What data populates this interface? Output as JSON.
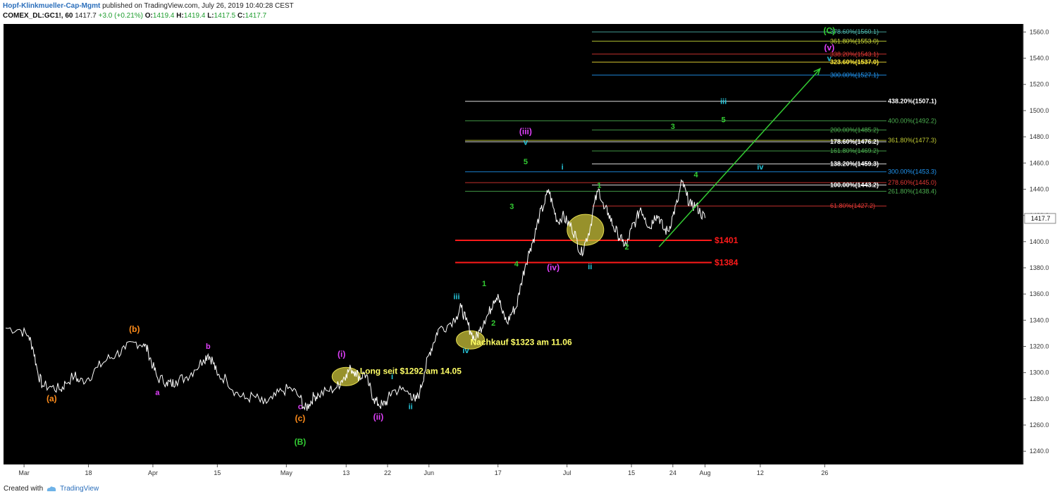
{
  "header": {
    "publisher": "Hopf-Klinkmueller-Cap-Mgmt",
    "published_text": "published on TradingView.com, July 26, 2019 10:40:28 CEST",
    "symbol": "COMEX_DL:GC1!, 60",
    "last": "1417.7",
    "change": "+3.0 (+0.21%)",
    "o_label": "O:",
    "o": "1419.4",
    "h_label": "H:",
    "h": "1419.4",
    "l_label": "L:",
    "l": "1417.5",
    "c_label": "C:",
    "c": "1417.7"
  },
  "footer": {
    "created_with": "Created with",
    "brand": "TradingView"
  },
  "chart_data": {
    "type": "line",
    "ylim": [
      1230,
      1570
    ],
    "y_ticks": [
      1240,
      1260,
      1280,
      1300,
      1320,
      1340,
      1360,
      1380,
      1400,
      1420,
      1440,
      1460,
      1480,
      1500,
      1520,
      1540,
      1560
    ],
    "x_range": [
      0,
      152
    ],
    "x_ticks": [
      {
        "day": 4,
        "label": "Mar"
      },
      {
        "day": 18,
        "label": "18"
      },
      {
        "day": 32,
        "label": "Apr"
      },
      {
        "day": 46,
        "label": "15"
      },
      {
        "day": 61,
        "label": "May"
      },
      {
        "day": 74,
        "label": "13"
      },
      {
        "day": 83,
        "label": "22"
      },
      {
        "day": 92,
        "label": "Jun"
      },
      {
        "day": 107,
        "label": "17"
      },
      {
        "day": 122,
        "label": "Jul"
      },
      {
        "day": 136,
        "label": "15"
      },
      {
        "day": 145,
        "label": "24"
      },
      {
        "day": 152,
        "label": "Aug"
      },
      {
        "day": 164,
        "label": "12"
      },
      {
        "day": 178,
        "label": "26"
      }
    ],
    "current_price": 1417.7,
    "series": [
      {
        "points": [
          [
            0,
            1334
          ],
          [
            3,
            1333
          ],
          [
            5,
            1328
          ],
          [
            6,
            1318
          ],
          [
            7,
            1300
          ],
          [
            8,
            1290
          ],
          [
            10,
            1289
          ],
          [
            12,
            1287
          ],
          [
            13,
            1292
          ],
          [
            15,
            1298
          ],
          [
            16,
            1293
          ],
          [
            18,
            1296
          ],
          [
            20,
            1304
          ],
          [
            22,
            1310
          ],
          [
            24,
            1314
          ],
          [
            26,
            1318
          ],
          [
            28,
            1323
          ],
          [
            30,
            1322
          ],
          [
            31,
            1316
          ],
          [
            32,
            1305
          ],
          [
            33,
            1296
          ],
          [
            35,
            1293
          ],
          [
            36,
            1291
          ],
          [
            37,
            1294
          ],
          [
            39,
            1296
          ],
          [
            41,
            1302
          ],
          [
            43,
            1310
          ],
          [
            44,
            1314
          ],
          [
            45,
            1309
          ],
          [
            46,
            1298
          ],
          [
            48,
            1295
          ],
          [
            50,
            1285
          ],
          [
            52,
            1280
          ],
          [
            54,
            1282
          ],
          [
            56,
            1276
          ],
          [
            58,
            1280
          ],
          [
            60,
            1286
          ],
          [
            62,
            1288
          ],
          [
            64,
            1281
          ],
          [
            65,
            1272
          ],
          [
            66,
            1276
          ],
          [
            67,
            1282
          ],
          [
            68,
            1283
          ],
          [
            70,
            1286
          ],
          [
            72,
            1289
          ],
          [
            73,
            1294
          ],
          [
            74,
            1299
          ],
          [
            75,
            1303
          ],
          [
            76,
            1301
          ],
          [
            77,
            1296
          ],
          [
            78,
            1300
          ],
          [
            79,
            1290
          ],
          [
            80,
            1280
          ],
          [
            81,
            1276
          ],
          [
            82,
            1275
          ],
          [
            83,
            1279
          ],
          [
            84,
            1286
          ],
          [
            86,
            1287
          ],
          [
            88,
            1284
          ],
          [
            89,
            1278
          ],
          [
            90,
            1285
          ],
          [
            91,
            1300
          ],
          [
            92,
            1314
          ],
          [
            93,
            1323
          ],
          [
            94,
            1333
          ],
          [
            96,
            1336
          ],
          [
            98,
            1343
          ],
          [
            99,
            1350
          ],
          [
            100,
            1340
          ],
          [
            101,
            1332
          ],
          [
            102,
            1325
          ],
          [
            103,
            1332
          ],
          [
            104,
            1340
          ],
          [
            105,
            1345
          ],
          [
            106,
            1355
          ],
          [
            107,
            1360
          ],
          [
            108,
            1345
          ],
          [
            109,
            1338
          ],
          [
            110,
            1346
          ],
          [
            111,
            1350
          ],
          [
            112,
            1368
          ],
          [
            113,
            1383
          ],
          [
            114,
            1395
          ],
          [
            115,
            1405
          ],
          [
            116,
            1420
          ],
          [
            117,
            1428
          ],
          [
            118,
            1440
          ],
          [
            119,
            1426
          ],
          [
            120,
            1415
          ],
          [
            121,
            1420
          ],
          [
            122,
            1415
          ],
          [
            123,
            1411
          ],
          [
            124,
            1403
          ],
          [
            125,
            1390
          ],
          [
            126,
            1400
          ],
          [
            127,
            1410
          ],
          [
            128,
            1430
          ],
          [
            129,
            1440
          ],
          [
            130,
            1425
          ],
          [
            131,
            1422
          ],
          [
            132,
            1412
          ],
          [
            133,
            1406
          ],
          [
            134,
            1400
          ],
          [
            135,
            1397
          ],
          [
            136,
            1410
          ],
          [
            137,
            1416
          ],
          [
            138,
            1426
          ],
          [
            139,
            1418
          ],
          [
            140,
            1410
          ],
          [
            141,
            1420
          ],
          [
            142,
            1419
          ],
          [
            143,
            1409
          ],
          [
            144,
            1408
          ],
          [
            145,
            1420
          ],
          [
            146,
            1430
          ],
          [
            147,
            1446
          ],
          [
            148,
            1435
          ],
          [
            149,
            1427
          ],
          [
            150,
            1428
          ],
          [
            151,
            1422
          ],
          [
            152,
            1418
          ]
        ]
      }
    ],
    "horizontal_levels": [
      {
        "label": "$1401",
        "value": 1401,
        "color": "#ff1a1a"
      },
      {
        "label": "$1384",
        "value": 1384,
        "color": "#ff1a1a"
      }
    ],
    "fib_levels": [
      {
        "label": "378.60%(1560.1)",
        "value": 1560.1,
        "color": "#4db6ac"
      },
      {
        "label": "361.80%(1553.0)",
        "value": 1553.0,
        "color": "#cddc39"
      },
      {
        "label": "338.20%(1543.1)",
        "value": 1543.1,
        "color": "#e53935"
      },
      {
        "label": "323.60%(1537.0)",
        "value": 1537.0,
        "color": "#ffeb3b"
      },
      {
        "label": "300.00%(1527.1)",
        "value": 1527.1,
        "color": "#2196f3"
      },
      {
        "label": "438.20%(1507.1)",
        "value": 1507.1,
        "color": "#ffffff"
      },
      {
        "label": "400.00%(1492.2)",
        "value": 1492.2,
        "color": "#4caf50"
      },
      {
        "label": "200.00%(1485.2)",
        "value": 1485.2,
        "color": "#4caf50"
      },
      {
        "label": "361.80%(1477.3)",
        "value": 1477.3,
        "color": "#c0ca33"
      },
      {
        "label": "178.60%(1476.2)",
        "value": 1476.2,
        "color": "#ffffff"
      },
      {
        "label": "161.80%(1469.2)",
        "value": 1469.2,
        "color": "#4caf50"
      },
      {
        "label": "138.20%(1459.3)",
        "value": 1459.3,
        "color": "#ffffff"
      },
      {
        "label": "300.00%(1453.3)",
        "value": 1453.3,
        "color": "#2196f3"
      },
      {
        "label": "278.60%(1445.0)",
        "value": 1445.0,
        "color": "#e53935"
      },
      {
        "label": "100.00%(1443.2)",
        "value": 1443.2,
        "color": "#ffffff"
      },
      {
        "label": "261.80%(1438.4)",
        "value": 1438.4,
        "color": "#4caf50"
      },
      {
        "label": "61.80%(1427.2)",
        "value": 1427.2,
        "color": "#e53935"
      }
    ],
    "projection": {
      "from": [
        142,
        1396
      ],
      "to": [
        177,
        1532
      ],
      "color": "#33cc33"
    },
    "annotations": [
      {
        "text": "Long seit $1292 am 14.05",
        "day": 77,
        "price": 1299,
        "color": "#ffff66"
      },
      {
        "text": "Nachkauf $1323 am 11.06",
        "day": 101,
        "price": 1321,
        "color": "#ffff66"
      }
    ],
    "wave_labels": [
      {
        "text": "(a)",
        "day": 10,
        "price": 1278,
        "color": "#ff8c1a"
      },
      {
        "text": "(b)",
        "day": 28,
        "price": 1331,
        "color": "#ff8c1a"
      },
      {
        "text": "(c)",
        "day": 64,
        "price": 1263,
        "color": "#ff8c1a"
      },
      {
        "text": "(B)",
        "day": 64,
        "price": 1245,
        "color": "#33cc33"
      },
      {
        "text": "a",
        "day": 33,
        "price": 1283,
        "color": "#e040fb"
      },
      {
        "text": "b",
        "day": 44,
        "price": 1318,
        "color": "#e040fb"
      },
      {
        "text": "c",
        "day": 64,
        "price": 1272,
        "color": "#e040fb"
      },
      {
        "text": "(i)",
        "day": 73,
        "price": 1312,
        "color": "#e040fb"
      },
      {
        "text": "(ii)",
        "day": 81,
        "price": 1264,
        "color": "#e040fb"
      },
      {
        "text": "(iii)",
        "day": 113,
        "price": 1482,
        "color": "#e040fb"
      },
      {
        "text": "(iv)",
        "day": 119,
        "price": 1378,
        "color": "#e040fb"
      },
      {
        "text": "(v)",
        "day": 179,
        "price": 1546,
        "color": "#e040fb"
      },
      {
        "text": "(C)",
        "day": 179,
        "price": 1559,
        "color": "#33cc33"
      },
      {
        "text": "v",
        "day": 179,
        "price": 1538,
        "color": "#26c6da"
      },
      {
        "text": "v",
        "day": 113,
        "price": 1474,
        "color": "#26c6da"
      },
      {
        "text": "i",
        "day": 84,
        "price": 1295,
        "color": "#26c6da"
      },
      {
        "text": "ii",
        "day": 88,
        "price": 1272,
        "color": "#26c6da"
      },
      {
        "text": "iii",
        "day": 98,
        "price": 1356,
        "color": "#26c6da"
      },
      {
        "text": "iv",
        "day": 100,
        "price": 1315,
        "color": "#26c6da"
      },
      {
        "text": "i",
        "day": 121,
        "price": 1455,
        "color": "#26c6da"
      },
      {
        "text": "ii",
        "day": 127,
        "price": 1379,
        "color": "#26c6da"
      },
      {
        "text": "iii",
        "day": 156,
        "price": 1505,
        "color": "#26c6da"
      },
      {
        "text": "iv",
        "day": 164,
        "price": 1455,
        "color": "#26c6da"
      },
      {
        "text": "1",
        "day": 104,
        "price": 1366,
        "color": "#33cc33"
      },
      {
        "text": "2",
        "day": 106,
        "price": 1336,
        "color": "#33cc33"
      },
      {
        "text": "3",
        "day": 110,
        "price": 1425,
        "color": "#33cc33"
      },
      {
        "text": "4",
        "day": 111,
        "price": 1381,
        "color": "#33cc33"
      },
      {
        "text": "5",
        "day": 113,
        "price": 1459,
        "color": "#33cc33"
      },
      {
        "text": "1",
        "day": 129,
        "price": 1441,
        "color": "#33cc33"
      },
      {
        "text": "2",
        "day": 135,
        "price": 1394,
        "color": "#33cc33"
      },
      {
        "text": "3",
        "day": 145,
        "price": 1486,
        "color": "#33cc33"
      },
      {
        "text": "4",
        "day": 150,
        "price": 1449,
        "color": "#33cc33"
      },
      {
        "text": "5",
        "day": 156,
        "price": 1491,
        "color": "#33cc33"
      }
    ],
    "highlights": [
      {
        "day": 74,
        "price": 1297
      },
      {
        "day": 101,
        "price": 1325
      },
      {
        "day": 126,
        "price": 1409
      }
    ]
  }
}
